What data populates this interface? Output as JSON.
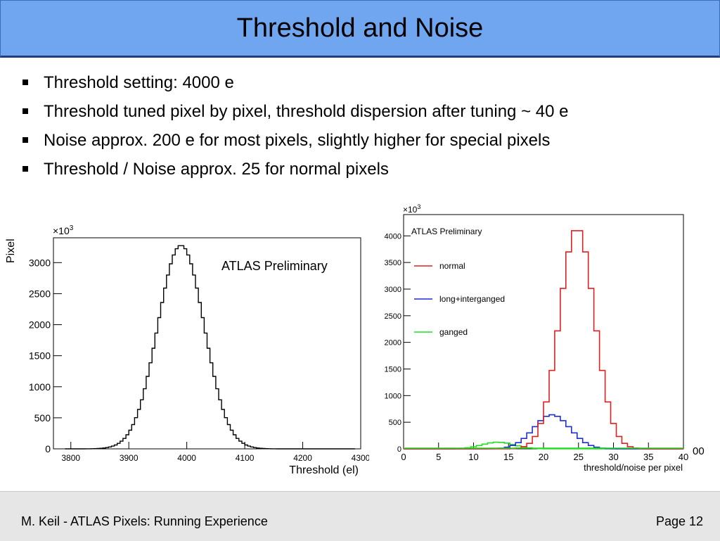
{
  "slide": {
    "title": "Threshold and Noise",
    "bullets": [
      "Threshold setting: 4000 e",
      "Threshold tuned pixel by pixel, threshold dispersion after tuning ~ 40 e",
      "Noise approx. 200 e for most pixels, slightly higher for special pixels",
      "Threshold / Noise approx. 25 for normal pixels"
    ],
    "footer_left": "M. Keil - ATLAS Pixels: Running Experience",
    "footer_right": "Page 12"
  },
  "chart_data": [
    {
      "type": "histogram",
      "annotation": "ATLAS Preliminary",
      "xlabel": "Threshold (el)",
      "ylabel": "Pixel",
      "y_multiplier": "×10",
      "y_multiplier_exp": "3",
      "xlim": [
        3770,
        4300
      ],
      "ylim": [
        0,
        3400
      ],
      "xticks": [
        3800,
        3900,
        4000,
        4100,
        4200,
        4300
      ],
      "yticks": [
        0,
        500,
        1000,
        1500,
        2000,
        2500,
        3000
      ],
      "line_color": "#000000",
      "distribution": {
        "mean": 3990,
        "sigma": 40,
        "peak": 3280,
        "bin_width": 5
      }
    },
    {
      "type": "histogram",
      "annotation": "ATLAS Preliminary",
      "xlabel": "threshold/noise per pixel",
      "ylabel": "",
      "y_multiplier": "×10",
      "y_multiplier_exp": "3",
      "xlim": [
        0,
        40
      ],
      "ylim": [
        0,
        4400
      ],
      "xticks": [
        0,
        5,
        10,
        15,
        20,
        25,
        30,
        35,
        40
      ],
      "yticks": [
        0,
        500,
        1000,
        1500,
        2000,
        2500,
        3000,
        3500,
        4000
      ],
      "legend_position": "top-left",
      "bin_width": 0.8,
      "series": [
        {
          "name": "normal",
          "color": "#e02020",
          "mean": 24.8,
          "sigma": 2.5,
          "peak": 4150
        },
        {
          "name": "long+interganged",
          "color": "#1f2fd0",
          "mean": 21.2,
          "sigma": 2.6,
          "peak": 640
        },
        {
          "name": "ganged",
          "color": "#22dd22",
          "mean": 13.5,
          "sigma": 2.3,
          "peak": 125
        }
      ],
      "clipped_text": "00"
    }
  ]
}
